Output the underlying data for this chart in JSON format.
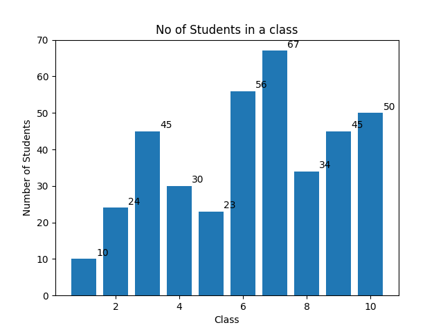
{
  "x_values": [
    1,
    2,
    3,
    4,
    5,
    6,
    7,
    8,
    9,
    10
  ],
  "y_values": [
    10,
    24,
    45,
    30,
    23,
    56,
    67,
    34,
    45,
    50
  ],
  "bar_color": "#2077b4",
  "title": "No of Students in a class",
  "xlabel": "Class",
  "ylabel": "Number of Students",
  "ylim": [
    0,
    70
  ],
  "title_fontsize": 12,
  "label_fontsize": 10,
  "figsize": [
    6.4,
    4.8
  ],
  "dpi": 100,
  "xticks": [
    2,
    4,
    6,
    8,
    10
  ]
}
